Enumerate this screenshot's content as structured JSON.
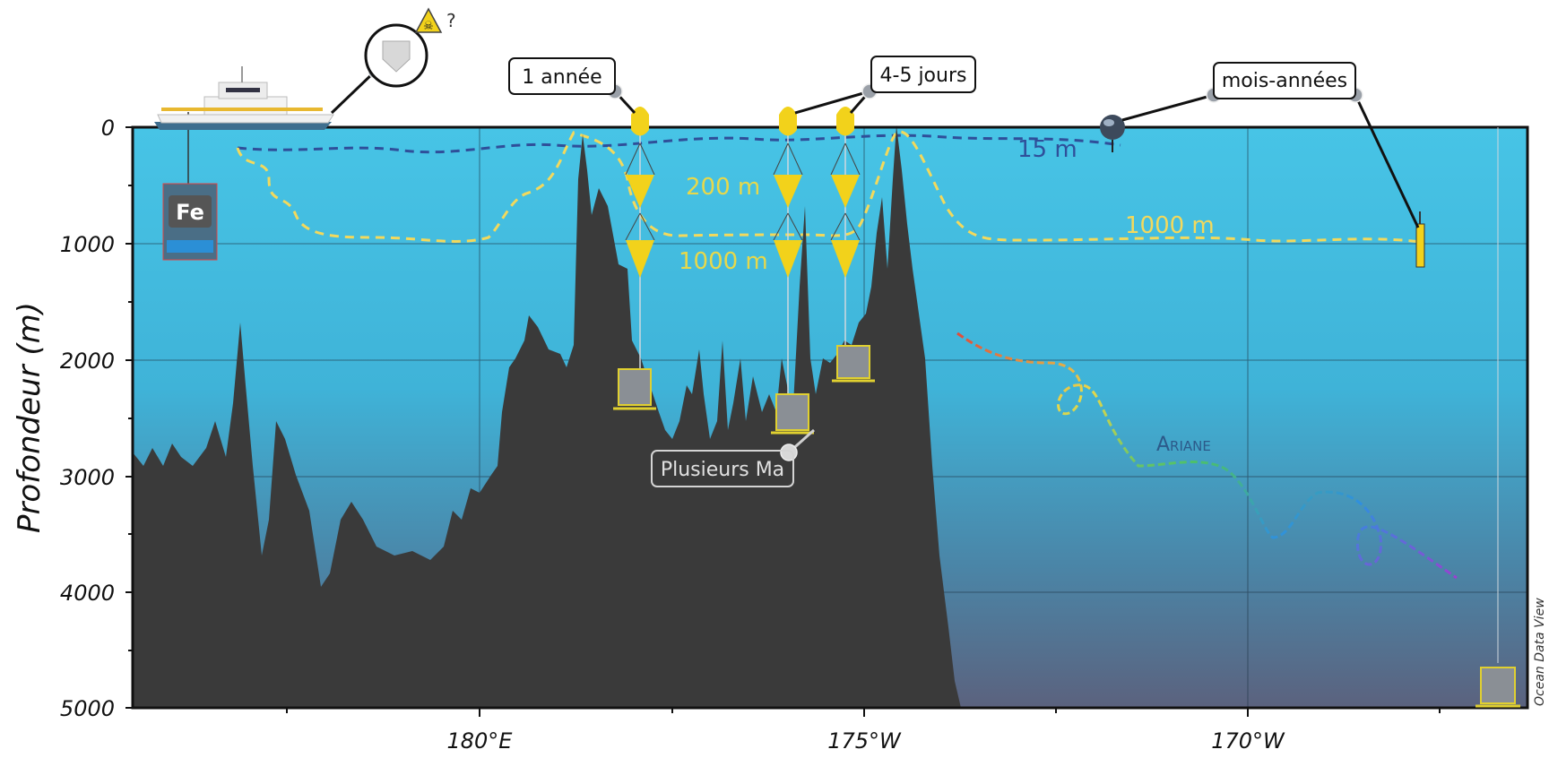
{
  "y_axis": {
    "label": "Profondeur (m)",
    "ticks": [
      "0",
      "1000",
      "2000",
      "3000",
      "4000",
      "5000"
    ],
    "range": [
      0,
      5000
    ]
  },
  "x_axis": {
    "ticks": [
      "180°E",
      "175°W",
      "170°W"
    ]
  },
  "callouts": {
    "one_year": "1 année",
    "four_five_days": "4-5 jours",
    "months_years": "mois-années",
    "question": "?",
    "several_ma": "Plusieurs Ma"
  },
  "depth_labels": {
    "surface_15m": "15 m",
    "upper_200m": "200 m",
    "lower_1000m": "1000 m",
    "float_1000m": "1000 m"
  },
  "instruments": {
    "fe_label": "Fe",
    "ariane_label": "Ariane"
  },
  "credit": "Ocean Data View",
  "colors": {
    "water_top": "#46c2e4",
    "water_bottom": "#5a6c86",
    "seafloor": "#3a3a3a",
    "trap": "#f2d21b",
    "dash_yellow": "#f3d95c",
    "dash_blue": "#2f4f9a",
    "ariane_text": "#2c5a8a"
  },
  "icons": [
    "ship-icon",
    "trap-icon",
    "fe-sampler-icon",
    "glider-icon",
    "float-icon",
    "lander-icon",
    "hazard-icon"
  ]
}
